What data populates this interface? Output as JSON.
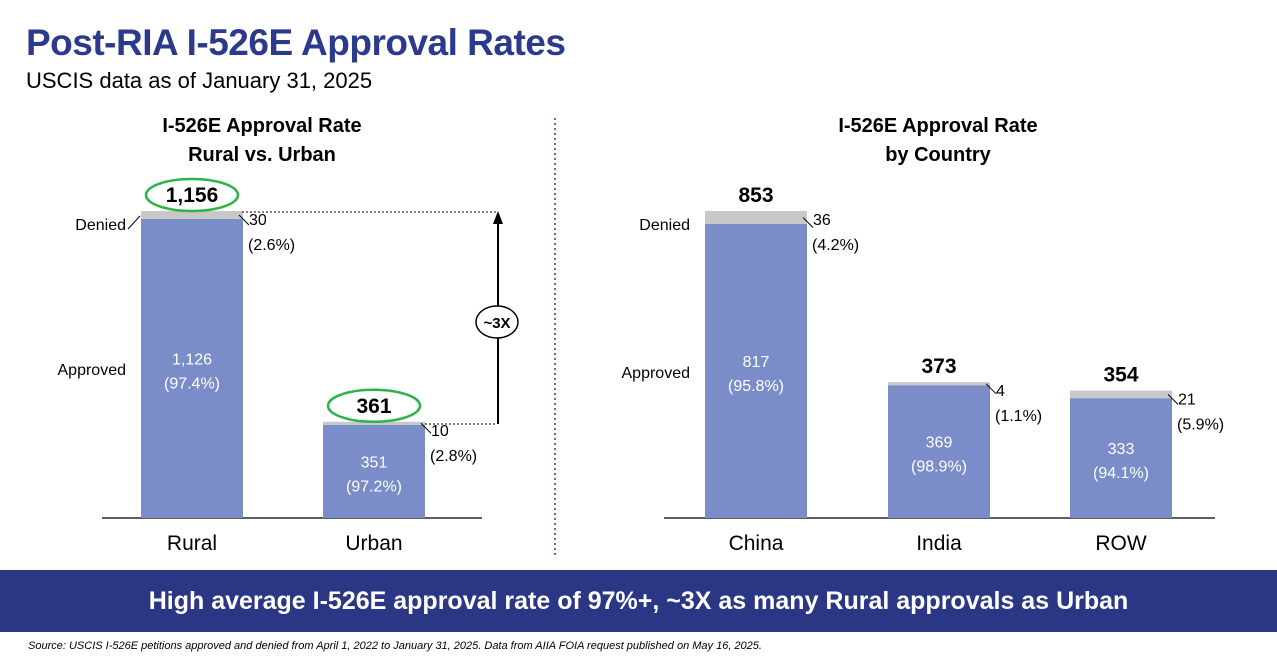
{
  "header": {
    "title": "Post-RIA I-526E Approval Rates",
    "subtitle": "USCIS data as of January 31, 2025"
  },
  "colors": {
    "title": "#2B3A8C",
    "approved": "#7A8DC9",
    "denied": "#C8C8C8",
    "highlight_ellipse": "#2DB34A",
    "banner_bg": "#2B3784",
    "banner_text": "#FFFFFF"
  },
  "chart_data": [
    {
      "type": "bar",
      "stacked": true,
      "title": [
        "I-526E Approval Rate",
        "Rural vs. Urban"
      ],
      "categories": [
        "Rural",
        "Urban"
      ],
      "series": [
        {
          "name": "Approved",
          "values": [
            1126,
            351
          ],
          "labels": [
            "1,126",
            "351"
          ],
          "pct": [
            "(97.4%)",
            "(97.2%)"
          ]
        },
        {
          "name": "Denied",
          "values": [
            30,
            10
          ],
          "labels": [
            "30",
            "10"
          ],
          "pct": [
            "(2.6%)",
            "(2.8%)"
          ]
        }
      ],
      "totals": [
        "1,156",
        "361"
      ],
      "highlighted_totals": true,
      "legend_labels": {
        "approved": "Approved",
        "denied": "Denied"
      },
      "annotation": "~3X",
      "ylim": [
        0,
        1156
      ]
    },
    {
      "type": "bar",
      "stacked": true,
      "title": [
        "I-526E Approval Rate",
        "by Country"
      ],
      "categories": [
        "China",
        "India",
        "ROW"
      ],
      "series": [
        {
          "name": "Approved",
          "values": [
            817,
            369,
            333
          ],
          "labels": [
            "817",
            "369",
            "333"
          ],
          "pct": [
            "(95.8%)",
            "(98.9%)",
            "(94.1%)"
          ]
        },
        {
          "name": "Denied",
          "values": [
            36,
            4,
            21
          ],
          "labels": [
            "36",
            "4",
            "21"
          ],
          "pct": [
            "(4.2%)",
            "(1.1%)",
            "(5.9%)"
          ]
        }
      ],
      "totals": [
        "853",
        "373",
        "354"
      ],
      "legend_labels": {
        "approved": "Approved",
        "denied": "Denied"
      },
      "ylim": [
        0,
        853
      ]
    }
  ],
  "banner": {
    "text": "High average I-526E approval rate of 97%+, ~3X as many Rural approvals as Urban"
  },
  "footnote": {
    "text": "Source: USCIS I-526E petitions approved and denied from April 1, 2022 to January 31, 2025. Data from AIIA FOIA request published on May 16, 2025."
  }
}
